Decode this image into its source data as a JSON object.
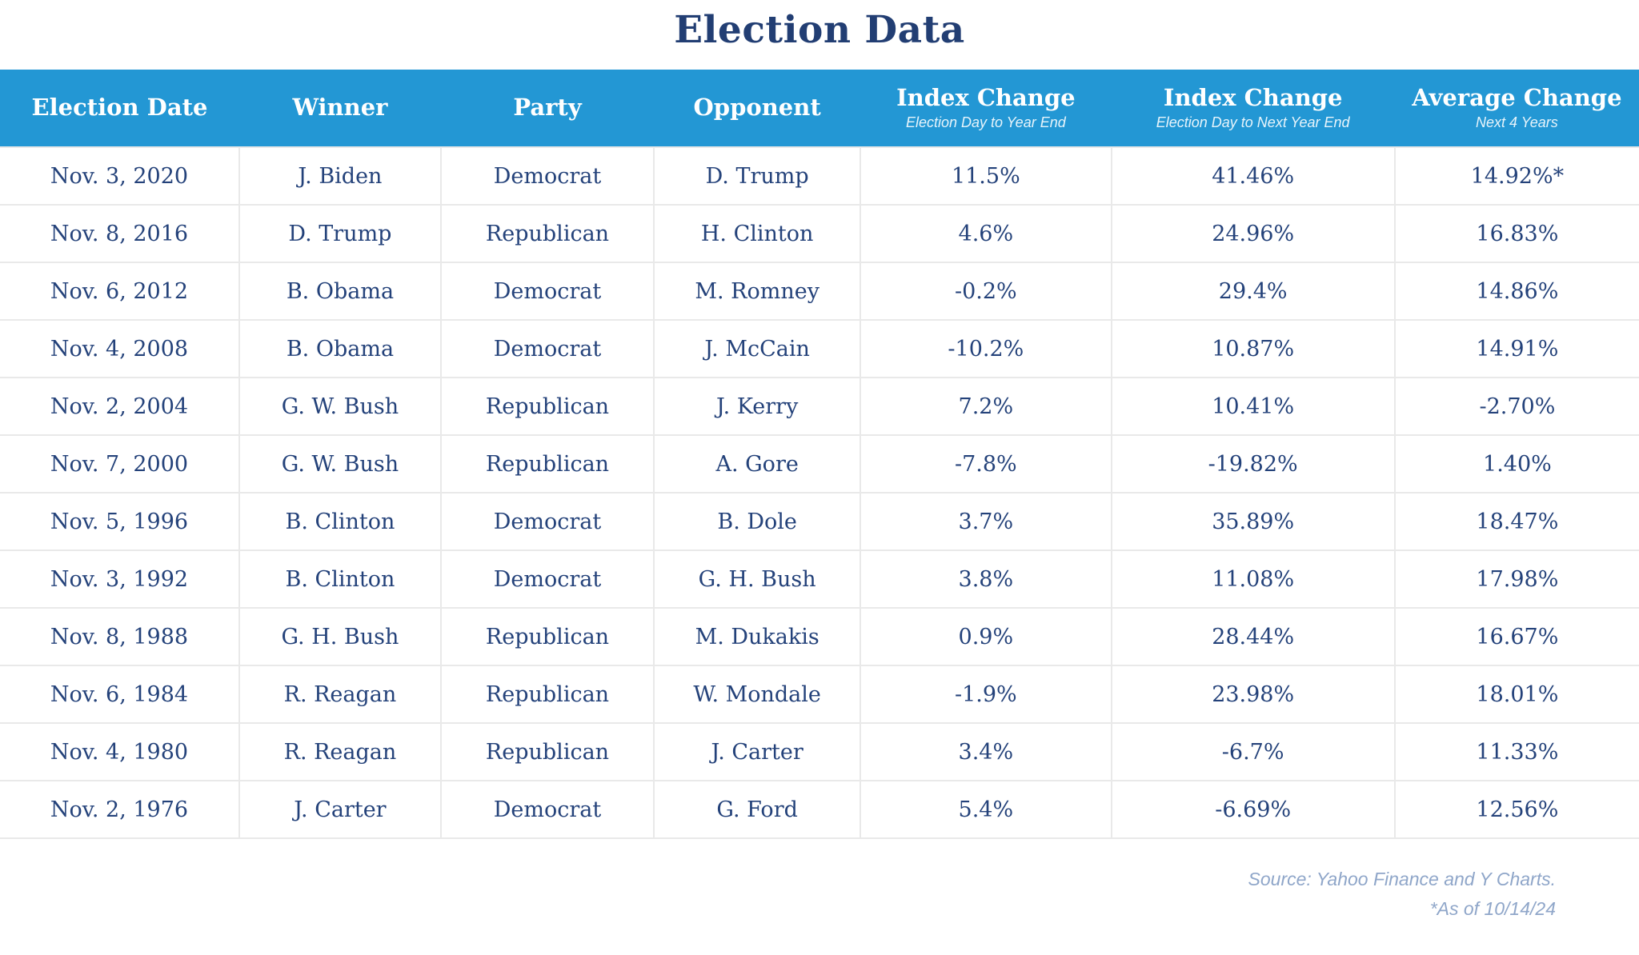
{
  "title": "Election Data",
  "colors": {
    "header_bg": "#2397d4",
    "header_text": "#ffffff",
    "body_text": "#24427a",
    "border": "#e9e9e9",
    "footer_text": "#8fa6c9"
  },
  "chart_data": {
    "type": "table",
    "title": "Election Data",
    "columns": [
      {
        "label": "Election Date",
        "sub": ""
      },
      {
        "label": "Winner",
        "sub": ""
      },
      {
        "label": "Party",
        "sub": ""
      },
      {
        "label": "Opponent",
        "sub": ""
      },
      {
        "label": "Index Change",
        "sub": "Election Day to Year End"
      },
      {
        "label": "Index Change",
        "sub": "Election Day to Next Year End"
      },
      {
        "label": "Average Change",
        "sub": "Next 4 Years"
      }
    ],
    "col_widths": [
      "14.6%",
      "12.3%",
      "13.0%",
      "12.6%",
      "15.3%",
      "17.3%",
      "14.9%"
    ],
    "rows": [
      [
        "Nov. 3, 2020",
        "J. Biden",
        "Democrat",
        "D. Trump",
        "11.5%",
        "41.46%",
        "14.92%*"
      ],
      [
        "Nov. 8, 2016",
        "D. Trump",
        "Republican",
        "H. Clinton",
        "4.6%",
        "24.96%",
        "16.83%"
      ],
      [
        "Nov. 6, 2012",
        "B. Obama",
        "Democrat",
        "M. Romney",
        "-0.2%",
        "29.4%",
        "14.86%"
      ],
      [
        "Nov. 4, 2008",
        "B. Obama",
        "Democrat",
        "J. McCain",
        "-10.2%",
        "10.87%",
        "14.91%"
      ],
      [
        "Nov. 2, 2004",
        "G. W. Bush",
        "Republican",
        "J. Kerry",
        "7.2%",
        "10.41%",
        "-2.70%"
      ],
      [
        "Nov. 7, 2000",
        "G. W. Bush",
        "Republican",
        "A. Gore",
        "-7.8%",
        "-19.82%",
        "1.40%"
      ],
      [
        "Nov. 5, 1996",
        "B. Clinton",
        "Democrat",
        "B. Dole",
        "3.7%",
        "35.89%",
        "18.47%"
      ],
      [
        "Nov. 3, 1992",
        "B. Clinton",
        "Democrat",
        "G. H. Bush",
        "3.8%",
        "11.08%",
        "17.98%"
      ],
      [
        "Nov. 8, 1988",
        "G. H. Bush",
        "Republican",
        "M. Dukakis",
        "0.9%",
        "28.44%",
        "16.67%"
      ],
      [
        "Nov. 6, 1984",
        "R. Reagan",
        "Republican",
        "W. Mondale",
        "-1.9%",
        "23.98%",
        "18.01%"
      ],
      [
        "Nov. 4, 1980",
        "R. Reagan",
        "Republican",
        "J. Carter",
        "3.4%",
        "-6.7%",
        "11.33%"
      ],
      [
        "Nov. 2, 1976",
        "J. Carter",
        "Democrat",
        "G. Ford",
        "5.4%",
        "-6.69%",
        "12.56%"
      ]
    ]
  },
  "footer": {
    "source": "Source: Yahoo Finance and Y Charts.",
    "asof": "*As of 10/14/24"
  }
}
